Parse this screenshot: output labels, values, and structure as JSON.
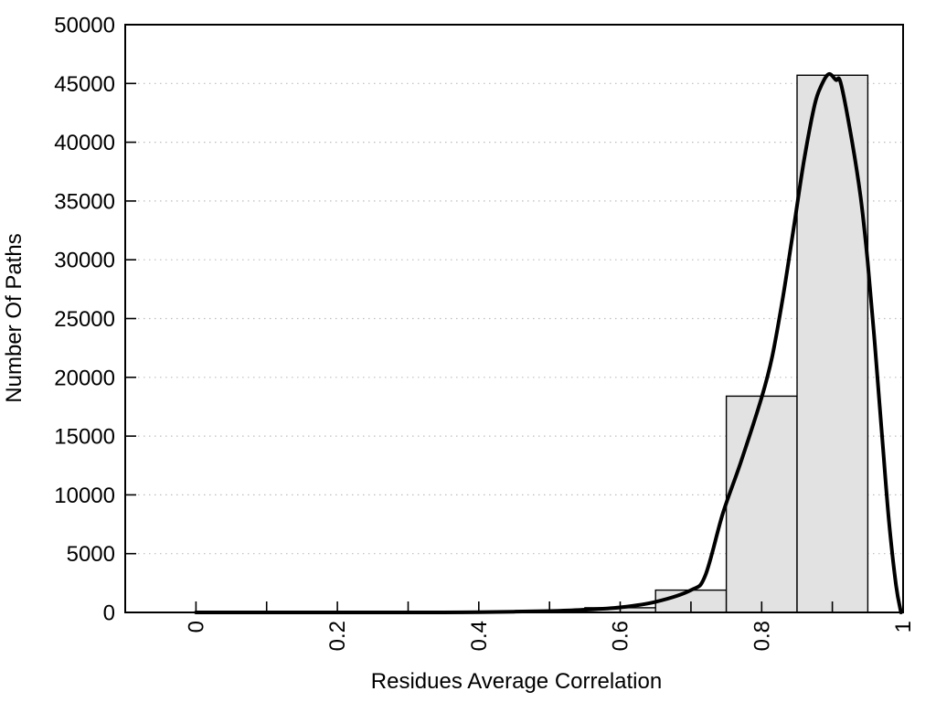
{
  "chart_data": {
    "type": "bar",
    "subtype": "histogram_with_fit_curve",
    "xlabel": "Residues Average Correlation",
    "ylabel": "Number Of Paths",
    "xlim": [
      -0.1,
      1.0
    ],
    "ylim": [
      0,
      50000
    ],
    "x_ticks": [
      {
        "value": 0,
        "label": "0"
      },
      {
        "value": 0.2,
        "label": "0.2"
      },
      {
        "value": 0.4,
        "label": "0.4"
      },
      {
        "value": 0.6,
        "label": "0.6"
      },
      {
        "value": 0.8,
        "label": "0.8"
      },
      {
        "value": 1,
        "label": "1"
      }
    ],
    "x_minor_ticks": [
      0.1,
      0.3,
      0.5,
      0.7,
      0.9
    ],
    "y_ticks": [
      {
        "value": 0,
        "label": "0"
      },
      {
        "value": 5000,
        "label": "5000"
      },
      {
        "value": 10000,
        "label": "10000"
      },
      {
        "value": 15000,
        "label": "15000"
      },
      {
        "value": 20000,
        "label": "20000"
      },
      {
        "value": 25000,
        "label": "25000"
      },
      {
        "value": 30000,
        "label": "30000"
      },
      {
        "value": 35000,
        "label": "35000"
      },
      {
        "value": 40000,
        "label": "40000"
      },
      {
        "value": 45000,
        "label": "45000"
      },
      {
        "value": 50000,
        "label": "50000"
      }
    ],
    "grid": {
      "horizontal_values": [
        5000,
        10000,
        15000,
        20000,
        25000,
        30000,
        35000,
        40000,
        45000
      ],
      "vertical": false,
      "style": "dotted"
    },
    "bars": [
      {
        "x0": 0.55,
        "x1": 0.65,
        "value": 400
      },
      {
        "x0": 0.65,
        "x1": 0.75,
        "value": 1900
      },
      {
        "x0": 0.75,
        "x1": 0.85,
        "value": 18400
      },
      {
        "x0": 0.85,
        "x1": 0.95,
        "value": 45700
      }
    ],
    "curve_points": [
      [
        0.0,
        0
      ],
      [
        0.05,
        0
      ],
      [
        0.1,
        0
      ],
      [
        0.15,
        0
      ],
      [
        0.2,
        0
      ],
      [
        0.25,
        0
      ],
      [
        0.3,
        0
      ],
      [
        0.35,
        0
      ],
      [
        0.4,
        20
      ],
      [
        0.45,
        60
      ],
      [
        0.5,
        120
      ],
      [
        0.55,
        230
      ],
      [
        0.6,
        430
      ],
      [
        0.65,
        900
      ],
      [
        0.7,
        1900
      ],
      [
        0.72,
        3100
      ],
      [
        0.745,
        8400
      ],
      [
        0.77,
        12700
      ],
      [
        0.8,
        18300
      ],
      [
        0.815,
        21800
      ],
      [
        0.83,
        26800
      ],
      [
        0.845,
        32600
      ],
      [
        0.86,
        38500
      ],
      [
        0.875,
        43200
      ],
      [
        0.885,
        44900
      ],
      [
        0.895,
        45800
      ],
      [
        0.905,
        45300
      ],
      [
        0.912,
        45000
      ],
      [
        0.928,
        40000
      ],
      [
        0.94,
        35300
      ],
      [
        0.95,
        29800
      ],
      [
        0.96,
        22800
      ],
      [
        0.97,
        15200
      ],
      [
        0.98,
        7800
      ],
      [
        0.99,
        2300
      ],
      [
        0.997,
        0
      ]
    ],
    "colors": {
      "bar_fill": "#e2e2e2",
      "bar_border": "#000000",
      "curve": "#000000",
      "grid": "#bdbdbd",
      "axis": "#000000",
      "text": "#000000",
      "background": "#ffffff"
    }
  }
}
